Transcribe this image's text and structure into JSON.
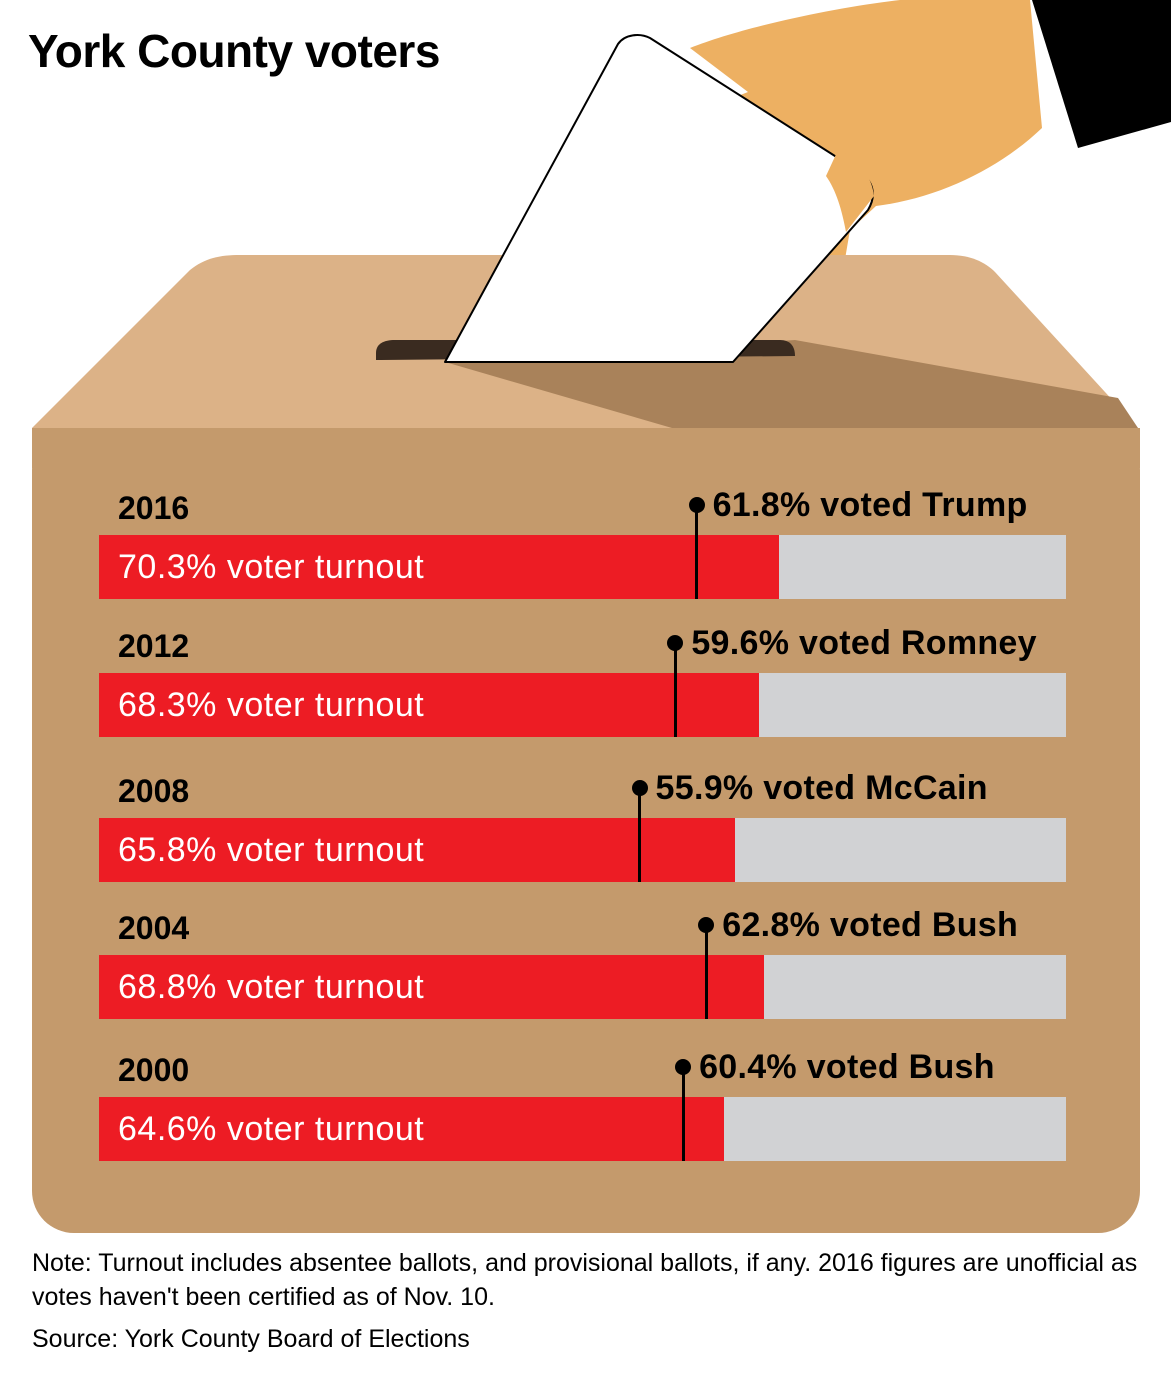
{
  "title": "York County voters",
  "note": "Note: Turnout includes absentee ballots, and provisional ballots, if any. 2016 figures are unofficial as votes haven't been certified as of Nov. 10.",
  "source": "Source: York County Board of Elections",
  "colors": {
    "turnout_bar": "#ed1c24",
    "bar_track": "#d1d2d4",
    "box_body": "#c49a6c",
    "box_lid": "#dcb287",
    "hand": "#edb062",
    "sleeve": "#000000"
  },
  "icons": [
    "ballot-box-icon",
    "ballot-paper-icon",
    "hand-icon"
  ],
  "chart_data": {
    "type": "bar",
    "categories": [
      "2016",
      "2012",
      "2008",
      "2004",
      "2000"
    ],
    "series": [
      {
        "values": [
          70.3,
          68.3,
          65.8,
          68.8,
          64.6
        ]
      },
      {
        "values": [
          61.8,
          59.6,
          55.9,
          62.8,
          60.4
        ]
      }
    ],
    "ylim": [
      0,
      100
    ],
    "rows": [
      {
        "year": "2016",
        "turnout": 70.3,
        "turnout_label": "70.3% voter turnout",
        "winner_pct": 61.8,
        "winner_label": "61.8% voted Trump"
      },
      {
        "year": "2012",
        "turnout": 68.3,
        "turnout_label": "68.3% voter turnout",
        "winner_pct": 59.6,
        "winner_label": "59.6% voted Romney"
      },
      {
        "year": "2008",
        "turnout": 65.8,
        "turnout_label": "65.8% voter turnout",
        "winner_pct": 55.9,
        "winner_label": "55.9% voted McCain"
      },
      {
        "year": "2004",
        "turnout": 68.8,
        "turnout_label": "68.8% voter turnout",
        "winner_pct": 62.8,
        "winner_label": "62.8% voted Bush"
      },
      {
        "year": "2000",
        "turnout": 64.6,
        "turnout_label": "64.6% voter turnout",
        "winner_pct": 60.4,
        "winner_label": "60.4% voted Bush"
      }
    ]
  }
}
